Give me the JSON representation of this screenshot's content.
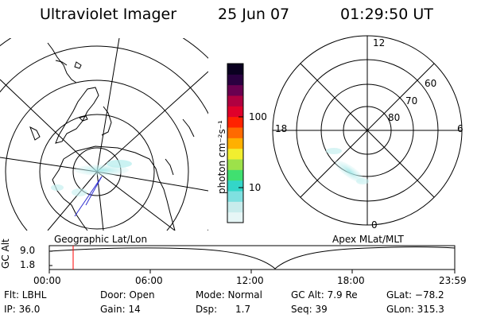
{
  "header": {
    "title": "Ultraviolet Imager",
    "date": "25 Jun 07",
    "time": "01:29:50 UT"
  },
  "left_panel": {
    "label": "Geographic Lat/Lon"
  },
  "right_panel": {
    "label": "Apex MLat/MLT",
    "mlt_labels": {
      "top": "12",
      "left": "18",
      "right": "6",
      "bottom": "0"
    },
    "lat_labels": [
      "60",
      "70",
      "80"
    ]
  },
  "colorbar": {
    "unit_label": "photon cm⁻²s⁻¹",
    "tick_labels": [
      "100",
      "10"
    ],
    "colors": [
      "#e6f6f6",
      "#c8ecec",
      "#7fe0e0",
      "#33d6c8",
      "#40e070",
      "#9de14a",
      "#f2ee2f",
      "#ffb000",
      "#ff6a00",
      "#ff2200",
      "#e0002a",
      "#b00040",
      "#6a0050",
      "#2a0040",
      "#0a0020"
    ]
  },
  "timeline": {
    "axis_label": "GC Alt",
    "y_ticks": [
      "9.0",
      "1.8"
    ],
    "x_ticks": [
      "00:00",
      "06:00",
      "12:00",
      "18:00",
      "23:59"
    ],
    "marker_time": "01:29:50",
    "line_color": "#ff0000"
  },
  "info": {
    "row1": [
      "Flt: LBHL",
      "Door: Open",
      "Mode: Normal",
      "GC Alt: 7.9 Re",
      "GLat: −78.2"
    ],
    "row2": [
      "IP: 36.0",
      "Gain: 14",
      "Dsp:      1.7",
      "Seq: 39",
      "GLon: 315.3"
    ]
  }
}
